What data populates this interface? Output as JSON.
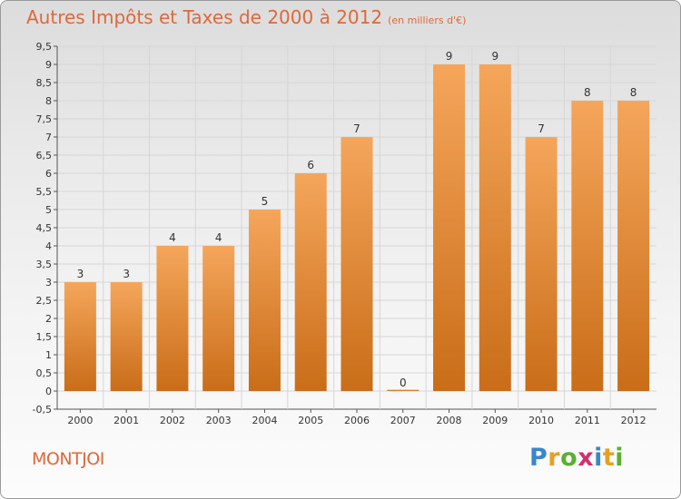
{
  "chart_data": {
    "type": "bar",
    "title": "Autres Impôts et Taxes de 2000 à 2012",
    "unit_note": "(en milliers d'€)",
    "categories": [
      "2000",
      "2001",
      "2002",
      "2003",
      "2004",
      "2005",
      "2006",
      "2007",
      "2008",
      "2009",
      "2010",
      "2011",
      "2012"
    ],
    "values": [
      3,
      3,
      4,
      4,
      5,
      6,
      7,
      0,
      9,
      9,
      7,
      8,
      8
    ],
    "data_labels": [
      "3",
      "3",
      "4",
      "4",
      "5",
      "6",
      "7",
      "0",
      "9",
      "9",
      "7",
      "8",
      "8"
    ],
    "y_ticks": [
      "-0,5",
      "0",
      "0,5",
      "1",
      "1,5",
      "2",
      "2,5",
      "3",
      "3,5",
      "4",
      "4,5",
      "5",
      "5,5",
      "6",
      "6,5",
      "7",
      "7,5",
      "8",
      "8,5",
      "9",
      "9,5"
    ],
    "y_tick_values": [
      -0.5,
      0,
      0.5,
      1,
      1.5,
      2,
      2.5,
      3,
      3.5,
      4,
      4.5,
      5,
      5.5,
      6,
      6.5,
      7,
      7.5,
      8,
      8.5,
      9,
      9.5
    ],
    "ylim": [
      -0.5,
      9.5
    ],
    "xlabel": "",
    "ylabel": "",
    "grid": true,
    "legend": "none"
  },
  "commune": "MONTJOI",
  "logo": {
    "letters": [
      "P",
      "r",
      "o",
      "x",
      "i",
      "t",
      "i"
    ],
    "colors": [
      "#3a86c8",
      "#e8a020",
      "#5ab030",
      "#d03070",
      "#3a86c8",
      "#e8a020",
      "#5ab030"
    ]
  },
  "colors": {
    "bar_top": "#f5a65b",
    "bar_bottom": "#c96d18",
    "title": "#e0683a",
    "grid": "#d6d6d6"
  }
}
